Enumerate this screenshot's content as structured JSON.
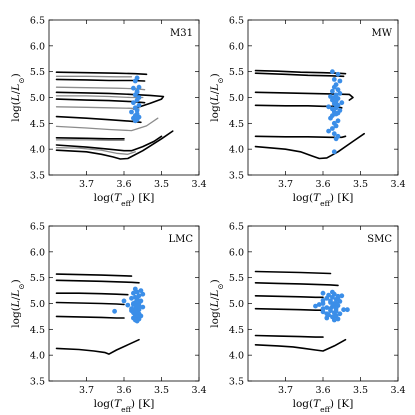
{
  "colors": {
    "stars": "#3b8ee8",
    "track_primary": "#000000",
    "track_secondary": "#8c8c8c"
  },
  "chart_data": [
    {
      "type": "scatter",
      "panel": "M31",
      "label": "M31",
      "xlabel": "log(T_eff) [K]",
      "ylabel": "log(L/L☉)",
      "xlim": [
        3.8,
        3.4
      ],
      "ylim": [
        3.5,
        6.5
      ],
      "xticks": [
        3.7,
        3.6,
        3.5,
        3.4
      ],
      "yticks": [
        3.5,
        4.0,
        4.5,
        5.0,
        5.5,
        6.0,
        6.5
      ],
      "stars": {
        "x": [
          3.565,
          3.57,
          3.56,
          3.575,
          3.565,
          3.57,
          3.56,
          3.565,
          3.575,
          3.56,
          3.57,
          3.565,
          3.58,
          3.565,
          3.57,
          3.56,
          3.575,
          3.565,
          3.57,
          3.565
        ],
        "y": [
          5.38,
          5.32,
          5.2,
          5.18,
          5.12,
          5.05,
          5.0,
          4.95,
          4.9,
          4.85,
          4.8,
          4.75,
          4.72,
          4.68,
          4.65,
          4.62,
          4.6,
          4.57,
          4.55,
          5.1
        ]
      },
      "tracks": [
        {
          "color": "primary",
          "x": [
            3.78,
            3.7,
            3.62,
            3.57,
            3.54
          ],
          "y": [
            5.49,
            5.48,
            5.47,
            5.46,
            5.45
          ]
        },
        {
          "color": "secondary",
          "x": [
            3.78,
            3.7,
            3.62,
            3.58
          ],
          "y": [
            5.41,
            5.41,
            5.4,
            5.4
          ]
        },
        {
          "color": "primary",
          "x": [
            3.78,
            3.7,
            3.64,
            3.58,
            3.545
          ],
          "y": [
            5.35,
            5.34,
            5.33,
            5.33,
            5.32
          ]
        },
        {
          "color": "secondary",
          "x": [
            3.78,
            3.7,
            3.62,
            3.57,
            3.545
          ],
          "y": [
            5.2,
            5.19,
            5.18,
            5.17,
            5.15
          ]
        },
        {
          "color": "primary",
          "x": [
            3.78,
            3.7,
            3.64,
            3.58,
            3.53,
            3.495,
            3.5,
            3.53,
            3.575
          ],
          "y": [
            5.1,
            5.09,
            5.08,
            5.06,
            5.04,
            5.02,
            4.97,
            4.89,
            4.78
          ]
        },
        {
          "color": "secondary",
          "x": [
            3.78,
            3.7,
            3.64,
            3.58,
            3.55
          ],
          "y": [
            5.03,
            5.03,
            5.02,
            5.0,
            5.0
          ]
        },
        {
          "color": "primary",
          "x": [
            3.78,
            3.7,
            3.64,
            3.58,
            3.545
          ],
          "y": [
            4.97,
            4.95,
            4.94,
            4.92,
            4.9
          ]
        },
        {
          "color": "secondary",
          "x": [
            3.78,
            3.7,
            3.64,
            3.58,
            3.56
          ],
          "y": [
            4.82,
            4.81,
            4.8,
            4.79,
            4.78
          ]
        },
        {
          "color": "primary",
          "x": [
            3.78,
            3.7,
            3.64,
            3.58,
            3.555
          ],
          "y": [
            4.63,
            4.6,
            4.57,
            4.54,
            4.52
          ]
        },
        {
          "color": "secondary",
          "x": [
            3.78,
            3.7,
            3.64,
            3.58,
            3.54,
            3.51
          ],
          "y": [
            4.44,
            4.41,
            4.38,
            4.36,
            4.45,
            4.6
          ]
        },
        {
          "color": "primary",
          "x": [
            3.78,
            3.7,
            3.64,
            3.6
          ],
          "y": [
            4.22,
            4.21,
            4.2,
            4.2
          ]
        },
        {
          "color": "secondary",
          "x": [
            3.78,
            3.7,
            3.64,
            3.6
          ],
          "y": [
            4.18,
            4.18,
            4.17,
            4.17
          ]
        },
        {
          "color": "primary",
          "x": [
            3.78,
            3.7,
            3.64,
            3.6,
            3.58,
            3.55,
            3.52,
            3.5
          ],
          "y": [
            4.08,
            4.04,
            4.0,
            3.97,
            3.97,
            4.05,
            4.15,
            4.25
          ]
        },
        {
          "color": "secondary",
          "x": [
            3.78,
            3.72,
            3.66,
            3.62,
            3.59,
            3.57
          ],
          "y": [
            4.03,
            4.02,
            3.98,
            3.92,
            3.9,
            3.95
          ]
        },
        {
          "color": "primary",
          "x": [
            3.78,
            3.7,
            3.66,
            3.63,
            3.61,
            3.59,
            3.55,
            3.5,
            3.47
          ],
          "y": [
            3.98,
            3.95,
            3.9,
            3.85,
            3.81,
            3.82,
            3.97,
            4.2,
            4.35
          ]
        }
      ]
    },
    {
      "type": "scatter",
      "panel": "MW",
      "label": "MW",
      "xlabel": "log(T_eff) [K]",
      "ylabel": "log(L/L☉)",
      "xlim": [
        3.8,
        3.4
      ],
      "ylim": [
        3.5,
        6.5
      ],
      "xticks": [
        3.7,
        3.6,
        3.5,
        3.4
      ],
      "yticks": [
        3.5,
        4.0,
        4.5,
        5.0,
        5.5,
        6.0,
        6.5
      ],
      "stars": {
        "x": [
          3.575,
          3.56,
          3.57,
          3.555,
          3.565,
          3.57,
          3.56,
          3.575,
          3.555,
          3.565,
          3.58,
          3.57,
          3.56,
          3.575,
          3.565,
          3.55,
          3.57,
          3.56,
          3.585,
          3.565,
          3.575,
          3.555,
          3.57,
          3.56,
          3.565,
          3.575,
          3.58,
          3.56,
          3.57,
          3.565,
          3.575,
          3.585,
          3.57,
          3.56,
          3.565,
          3.57
        ],
        "y": [
          5.5,
          5.45,
          5.35,
          5.32,
          5.25,
          5.2,
          5.15,
          5.12,
          5.08,
          5.05,
          5.02,
          5.0,
          4.98,
          4.95,
          4.92,
          4.9,
          4.88,
          4.85,
          4.82,
          4.8,
          4.78,
          4.75,
          4.72,
          4.7,
          4.68,
          4.65,
          4.6,
          4.55,
          4.5,
          4.45,
          4.4,
          4.35,
          4.3,
          4.25,
          4.2,
          3.95
        ]
      },
      "tracks": [
        {
          "color": "primary",
          "x": [
            3.78,
            3.72,
            3.66,
            3.6,
            3.56,
            3.54
          ],
          "y": [
            5.52,
            5.51,
            5.49,
            5.48,
            5.47,
            5.46
          ]
        },
        {
          "color": "primary",
          "x": [
            3.78,
            3.7,
            3.64,
            3.58,
            3.545
          ],
          "y": [
            5.47,
            5.45,
            5.43,
            5.42,
            5.41
          ]
        },
        {
          "color": "primary",
          "x": [
            3.78,
            3.7,
            3.64,
            3.58,
            3.53,
            3.52,
            3.53
          ],
          "y": [
            5.1,
            5.09,
            5.08,
            5.07,
            5.06,
            5.0,
            4.95
          ]
        },
        {
          "color": "primary",
          "x": [
            3.78,
            3.7,
            3.64,
            3.6,
            3.57,
            3.55
          ],
          "y": [
            4.85,
            4.84,
            4.84,
            4.83,
            4.83,
            4.8
          ]
        },
        {
          "color": "primary",
          "x": [
            3.78,
            3.7,
            3.64,
            3.58,
            3.55,
            3.54
          ],
          "y": [
            4.25,
            4.24,
            4.24,
            4.23,
            4.23,
            4.25
          ]
        },
        {
          "color": "primary",
          "x": [
            3.78,
            3.7,
            3.66,
            3.63,
            3.61,
            3.59,
            3.56,
            3.52,
            3.49
          ],
          "y": [
            4.05,
            4.0,
            3.95,
            3.87,
            3.82,
            3.83,
            3.95,
            4.15,
            4.3
          ]
        }
      ]
    },
    {
      "type": "scatter",
      "panel": "LMC",
      "label": "LMC",
      "xlabel": "log(T_eff) [K]",
      "ylabel": "log(L/L☉)",
      "xlim": [
        3.8,
        3.4
      ],
      "ylim": [
        3.5,
        6.5
      ],
      "xticks": [
        3.7,
        3.6,
        3.5,
        3.4
      ],
      "yticks": [
        3.5,
        4.0,
        4.5,
        5.0,
        5.5,
        6.0,
        6.5
      ],
      "stars": {
        "x": [
          3.57,
          3.555,
          3.565,
          3.575,
          3.55,
          3.56,
          3.57,
          3.58,
          3.565,
          3.555,
          3.57,
          3.56,
          3.575,
          3.59,
          3.565,
          3.55,
          3.57,
          3.56,
          3.58,
          3.565,
          3.575,
          3.56,
          3.57,
          3.555,
          3.565,
          3.575,
          3.56,
          3.57,
          3.565,
          3.58,
          3.575,
          3.565,
          3.56,
          3.57,
          3.625,
          3.6
        ],
        "y": [
          5.28,
          5.25,
          5.22,
          5.2,
          5.18,
          5.15,
          5.12,
          5.1,
          5.08,
          5.05,
          5.02,
          5.0,
          4.98,
          4.97,
          4.95,
          4.93,
          4.9,
          4.88,
          4.86,
          4.84,
          4.82,
          4.8,
          4.78,
          4.76,
          4.74,
          4.72,
          4.7,
          4.68,
          4.66,
          4.9,
          5.0,
          5.1,
          4.95,
          4.85,
          4.85,
          5.05
        ]
      },
      "tracks": [
        {
          "color": "primary",
          "x": [
            3.78,
            3.72,
            3.66,
            3.62,
            3.58
          ],
          "y": [
            5.57,
            5.56,
            5.55,
            5.54,
            5.53
          ]
        },
        {
          "color": "primary",
          "x": [
            3.78,
            3.72,
            3.66,
            3.62,
            3.58,
            3.56
          ],
          "y": [
            5.45,
            5.44,
            5.43,
            5.42,
            5.41,
            5.4
          ]
        },
        {
          "color": "primary",
          "x": [
            3.78,
            3.72,
            3.66,
            3.62,
            3.59
          ],
          "y": [
            5.2,
            5.2,
            5.19,
            5.18,
            5.17
          ]
        },
        {
          "color": "primary",
          "x": [
            3.78,
            3.72,
            3.66,
            3.62,
            3.6
          ],
          "y": [
            5.02,
            5.01,
            5.0,
            4.99,
            4.98
          ]
        },
        {
          "color": "primary",
          "x": [
            3.78,
            3.72,
            3.66,
            3.62,
            3.6
          ],
          "y": [
            4.75,
            4.74,
            4.73,
            4.72,
            4.72
          ]
        },
        {
          "color": "primary",
          "x": [
            3.78,
            3.72,
            3.68,
            3.65,
            3.64,
            3.62,
            3.59,
            3.56
          ],
          "y": [
            4.13,
            4.11,
            4.08,
            4.05,
            4.02,
            4.1,
            4.2,
            4.3
          ]
        }
      ]
    },
    {
      "type": "scatter",
      "panel": "SMC",
      "label": "SMC",
      "xlabel": "log(T_eff) [K]",
      "ylabel": "log(L/L☉)",
      "xlim": [
        3.8,
        3.4
      ],
      "ylim": [
        3.5,
        6.5
      ],
      "xticks": [
        3.7,
        3.6,
        3.5,
        3.4
      ],
      "yticks": [
        3.5,
        4.0,
        4.5,
        5.0,
        5.5,
        6.0,
        6.5
      ],
      "stars": {
        "x": [
          3.6,
          3.57,
          3.585,
          3.56,
          3.575,
          3.59,
          3.565,
          3.6,
          3.555,
          3.58,
          3.57,
          3.61,
          3.56,
          3.575,
          3.59,
          3.565,
          3.545,
          3.58,
          3.6,
          3.57,
          3.555,
          3.585,
          3.565,
          3.575,
          3.59,
          3.56,
          3.6,
          3.57,
          3.58,
          3.565,
          3.535,
          3.62,
          3.575,
          3.56,
          3.59,
          3.57,
          3.58,
          3.565,
          3.55,
          3.6
        ],
        "y": [
          5.2,
          5.18,
          5.16,
          5.14,
          5.12,
          5.1,
          5.08,
          5.06,
          5.04,
          5.02,
          5.0,
          4.98,
          4.96,
          4.94,
          4.92,
          4.9,
          4.88,
          4.86,
          4.84,
          4.82,
          4.8,
          4.78,
          4.76,
          4.74,
          4.72,
          4.7,
          5.0,
          4.95,
          5.05,
          4.85,
          4.88,
          4.95,
          5.22,
          5.1,
          4.8,
          4.68,
          4.9,
          5.0,
          5.15,
          4.9
        ]
      },
      "tracks": [
        {
          "color": "primary",
          "x": [
            3.78,
            3.72,
            3.66,
            3.62,
            3.58
          ],
          "y": [
            5.62,
            5.61,
            5.6,
            5.59,
            5.58
          ]
        },
        {
          "color": "primary",
          "x": [
            3.78,
            3.72,
            3.66,
            3.62,
            3.58,
            3.56
          ],
          "y": [
            5.4,
            5.39,
            5.38,
            5.37,
            5.36,
            5.35
          ]
        },
        {
          "color": "primary",
          "x": [
            3.78,
            3.72,
            3.66,
            3.62,
            3.6
          ],
          "y": [
            5.15,
            5.14,
            5.13,
            5.12,
            5.12
          ]
        },
        {
          "color": "primary",
          "x": [
            3.78,
            3.72,
            3.66,
            3.62,
            3.6
          ],
          "y": [
            4.9,
            4.89,
            4.88,
            4.87,
            4.87
          ]
        },
        {
          "color": "primary",
          "x": [
            3.78,
            3.72,
            3.66,
            3.62,
            3.6
          ],
          "y": [
            4.38,
            4.37,
            4.36,
            4.35,
            4.35
          ]
        },
        {
          "color": "primary",
          "x": [
            3.78,
            3.72,
            3.68,
            3.65,
            3.62,
            3.6,
            3.57,
            3.54
          ],
          "y": [
            4.2,
            4.18,
            4.16,
            4.13,
            4.1,
            4.08,
            4.18,
            4.3
          ]
        }
      ]
    }
  ]
}
